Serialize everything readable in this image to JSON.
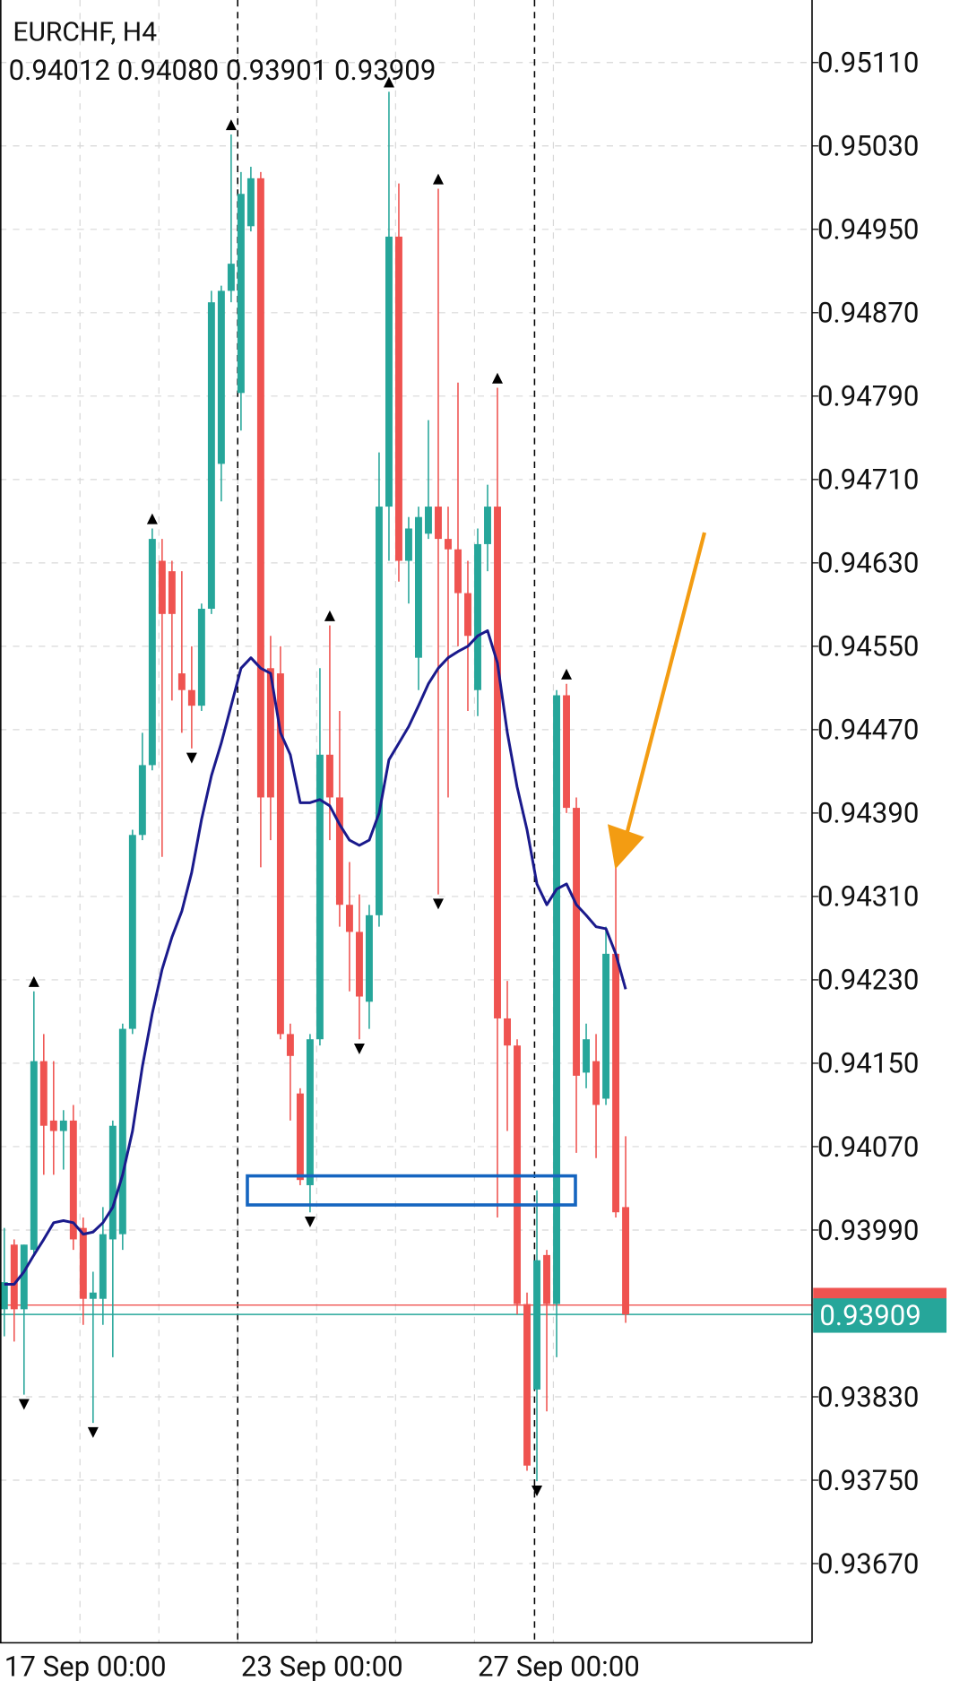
{
  "chart_data": {
    "type": "candlestick",
    "title": "EURCHF, H4",
    "subtitle": "0.94012 0.94080 0.93901 0.93909",
    "categories": [
      "17 Sep 00:00",
      null,
      null,
      null,
      null,
      null,
      null,
      null,
      null,
      null,
      null,
      null,
      null,
      null,
      null,
      null,
      null,
      null,
      null,
      null,
      null,
      null,
      null,
      null,
      "23 Sep 00:00",
      null,
      null,
      null,
      null,
      null,
      null,
      null,
      null,
      null,
      null,
      null,
      null,
      null,
      null,
      null,
      null,
      null,
      null,
      null,
      null,
      null,
      null,
      null,
      "27 Sep 00:00",
      null,
      null,
      null,
      null,
      null,
      null,
      null,
      null,
      null,
      null,
      null,
      null,
      null,
      null,
      null
    ],
    "open": [
      0.93914,
      0.93976,
      0.93914,
      0.93971,
      0.94152,
      0.94095,
      0.94085,
      0.94095,
      0.93992,
      0.93924,
      0.93924,
      0.93981,
      0.93986,
      0.94183,
      0.94369,
      0.94436,
      0.94632,
      0.94622,
      0.94524,
      0.94508,
      0.94493,
      0.94586,
      0.94725,
      0.94891,
      0.94793,
      0.94953,
      0.94999,
      0.94529,
      0.94524,
      0.94178,
      0.94121,
      0.94033,
      0.94173,
      0.94446,
      0.94405,
      0.94302,
      0.94276,
      0.94209,
      0.94292,
      0.94684,
      0.94943,
      0.94632,
      0.94539,
      0.94658,
      0.94684,
      0.94653,
      0.94643,
      0.94601,
      0.94508,
      0.94648,
      0.94684,
      0.94193,
      0.94167,
      0.93919,
      0.93837,
      0.93966,
      0.93919,
      0.94503,
      0.94395,
      0.94141,
      0.94152,
      0.94116,
      0.94255,
      0.94012
    ],
    "high": [
      0.93992,
      0.93981,
      0.93976,
      0.94219,
      0.94178,
      0.94152,
      0.94105,
      0.9411,
      0.94002,
      0.9395,
      0.94012,
      0.94095,
      0.94188,
      0.94374,
      0.94467,
      0.94663,
      0.94653,
      0.94632,
      0.94622,
      0.9455,
      0.94591,
      0.94891,
      0.94896,
      0.95041,
      0.95005,
      0.9501,
      0.95005,
      0.9456,
      0.9455,
      0.94188,
      0.94126,
      0.94178,
      0.94529,
      0.9457,
      0.94488,
      0.94343,
      0.94312,
      0.94302,
      0.94736,
      0.95082,
      0.94994,
      0.94674,
      0.94684,
      0.94767,
      0.94989,
      0.94684,
      0.94803,
      0.94632,
      0.94663,
      0.94705,
      0.94798,
      0.94229,
      0.94173,
      0.9393,
      0.94028,
      0.93971,
      0.94508,
      0.94514,
      0.94405,
      0.94188,
      0.94178,
      0.94281,
      0.94343,
      0.9408
    ],
    "low": [
      0.93888,
      0.93883,
      0.93832,
      0.93966,
      0.94043,
      0.94043,
      0.94048,
      0.93971,
      0.93899,
      0.93805,
      0.93899,
      0.93868,
      0.93971,
      0.94178,
      0.94364,
      0.94431,
      0.94348,
      0.94498,
      0.94467,
      0.94452,
      0.94488,
      0.94581,
      0.94689,
      0.9488,
      0.94757,
      0.94948,
      0.94338,
      0.94364,
      0.94173,
      0.94095,
      0.94033,
      0.94007,
      0.94167,
      0.94364,
      0.94281,
      0.94219,
      0.94173,
      0.94183,
      0.94281,
      0.94632,
      0.94612,
      0.94591,
      0.94508,
      0.94653,
      0.94312,
      0.94405,
      0.9455,
      0.94488,
      0.94483,
      0.94622,
      0.94002,
      0.94085,
      0.93909,
      0.93759,
      0.93749,
      0.93816,
      0.93868,
      0.9439,
      0.94064,
      0.94126,
      0.94059,
      0.9411,
      0.94002,
      0.93901
    ],
    "close": [
      0.9394,
      0.93914,
      0.93976,
      0.94152,
      0.9409,
      0.94085,
      0.94095,
      0.93981,
      0.93924,
      0.9393,
      0.93986,
      0.9409,
      0.94183,
      0.94369,
      0.94436,
      0.94653,
      0.94581,
      0.94581,
      0.94508,
      0.94493,
      0.94586,
      0.9488,
      0.94891,
      0.94917,
      0.94984,
      0.94999,
      0.94405,
      0.94405,
      0.94178,
      0.94157,
      0.94038,
      0.94173,
      0.94446,
      0.94405,
      0.94302,
      0.94276,
      0.94214,
      0.94292,
      0.94684,
      0.94943,
      0.94632,
      0.94663,
      0.94674,
      0.94684,
      0.94653,
      0.94643,
      0.94601,
      0.9456,
      0.94648,
      0.94684,
      0.94193,
      0.94167,
      0.93919,
      0.93764,
      0.93961,
      0.93919,
      0.94503,
      0.94395,
      0.94138,
      0.94173,
      0.9411,
      0.94255,
      0.94007,
      0.93909
    ],
    "up_color": "#26a69a",
    "down_color": "#ef5350",
    "moving_average": {
      "color": "#1a1a8c",
      "values": [
        0.93938,
        0.93938,
        0.9395,
        0.93966,
        0.93981,
        0.93997,
        0.93999,
        0.93997,
        0.93986,
        0.93988,
        0.93997,
        0.94012,
        0.94043,
        0.94085,
        0.94147,
        0.94198,
        0.9424,
        0.94271,
        0.94296,
        0.94333,
        0.94384,
        0.94426,
        0.94457,
        0.94493,
        0.94529,
        0.94539,
        0.94529,
        0.94524,
        0.94467,
        0.94446,
        0.944,
        0.944,
        0.94403,
        0.94397,
        0.94379,
        0.94364,
        0.94359,
        0.94364,
        0.9439,
        0.94441,
        0.94457,
        0.94473,
        0.94493,
        0.94514,
        0.94529,
        0.94539,
        0.94545,
        0.9455,
        0.9456,
        0.94565,
        0.94534,
        0.94467,
        0.94415,
        0.94374,
        0.94322,
        0.94302,
        0.94317,
        0.94322,
        0.94302,
        0.94292,
        0.94281,
        0.94279,
        0.94255,
        0.94221
      ]
    },
    "fractals_up": [
      3,
      15,
      23,
      33,
      39,
      44,
      50,
      57
    ],
    "fractals_down": [
      2,
      9,
      19,
      31,
      36,
      44,
      54
    ],
    "ask_line": {
      "value": 0.93918,
      "color": "#ef5350"
    },
    "price_line": {
      "value": 0.93909,
      "label": "0.93909",
      "color": "#26a69a"
    },
    "ylim": [
      0.93594,
      0.9517
    ],
    "yticks": [
      {
        "value": 0.9511,
        "label": "0.95110"
      },
      {
        "value": 0.9503,
        "label": "0.95030"
      },
      {
        "value": 0.9495,
        "label": "0.94950"
      },
      {
        "value": 0.9487,
        "label": "0.94870"
      },
      {
        "value": 0.9479,
        "label": "0.94790"
      },
      {
        "value": 0.9471,
        "label": "0.94710"
      },
      {
        "value": 0.9463,
        "label": "0.94630"
      },
      {
        "value": 0.9455,
        "label": "0.94550"
      },
      {
        "value": 0.9447,
        "label": "0.94470"
      },
      {
        "value": 0.9439,
        "label": "0.94390"
      },
      {
        "value": 0.9431,
        "label": "0.94310"
      },
      {
        "value": 0.9423,
        "label": "0.94230"
      },
      {
        "value": 0.9415,
        "label": "0.94150"
      },
      {
        "value": 0.9407,
        "label": "0.94070"
      },
      {
        "value": 0.9399,
        "label": "0.93990"
      },
      {
        "value": 0.9383,
        "label": "0.93830"
      },
      {
        "value": 0.9375,
        "label": "0.93750"
      },
      {
        "value": 0.9367,
        "label": "0.93670"
      }
    ],
    "grid": true
  }
}
